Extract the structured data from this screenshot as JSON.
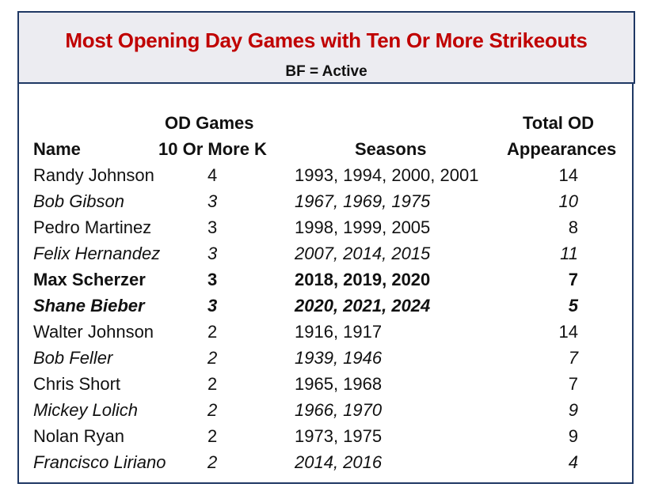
{
  "title": "Most Opening Day Games with Ten Or More Strikeouts",
  "subtitle": "BF = Active",
  "headers": {
    "name": "Name",
    "games_line1": "OD Games",
    "games_line2": "10 Or More K",
    "seasons": "Seasons",
    "total_line1": "Total OD",
    "total_line2": "Appearances"
  },
  "rows": [
    {
      "name": "Randy Johnson",
      "games": "4",
      "seasons": "1993, 1994, 2000, 2001",
      "total": "14",
      "style": "normal"
    },
    {
      "name": "Bob Gibson",
      "games": "3",
      "seasons": "1967, 1969, 1975",
      "total": "10",
      "style": "italic"
    },
    {
      "name": "Pedro Martinez",
      "games": "3",
      "seasons": "1998, 1999, 2005",
      "total": "8",
      "style": "normal"
    },
    {
      "name": "Felix Hernandez",
      "games": "3",
      "seasons": "2007, 2014, 2015",
      "total": "11",
      "style": "italic"
    },
    {
      "name": "Max Scherzer",
      "games": "3",
      "seasons": "2018, 2019, 2020",
      "total": "7",
      "style": "bold"
    },
    {
      "name": "Shane Bieber",
      "games": "3",
      "seasons": "2020, 2021, 2024",
      "total": "5",
      "style": "bold italic"
    },
    {
      "name": "Walter Johnson",
      "games": "2",
      "seasons": "1916, 1917",
      "total": "14",
      "style": "normal"
    },
    {
      "name": "Bob Feller",
      "games": "2",
      "seasons": "1939, 1946",
      "total": "7",
      "style": "italic"
    },
    {
      "name": "Chris Short",
      "games": "2",
      "seasons": "1965, 1968",
      "total": "7",
      "style": "normal"
    },
    {
      "name": "Mickey Lolich",
      "games": "2",
      "seasons": "1966, 1970",
      "total": "9",
      "style": "italic"
    },
    {
      "name": "Nolan Ryan",
      "games": "2",
      "seasons": "1973, 1975",
      "total": "9",
      "style": "normal"
    },
    {
      "name": "Francisco Liriano",
      "games": "2",
      "seasons": "2014, 2016",
      "total": "4",
      "style": "italic"
    }
  ]
}
